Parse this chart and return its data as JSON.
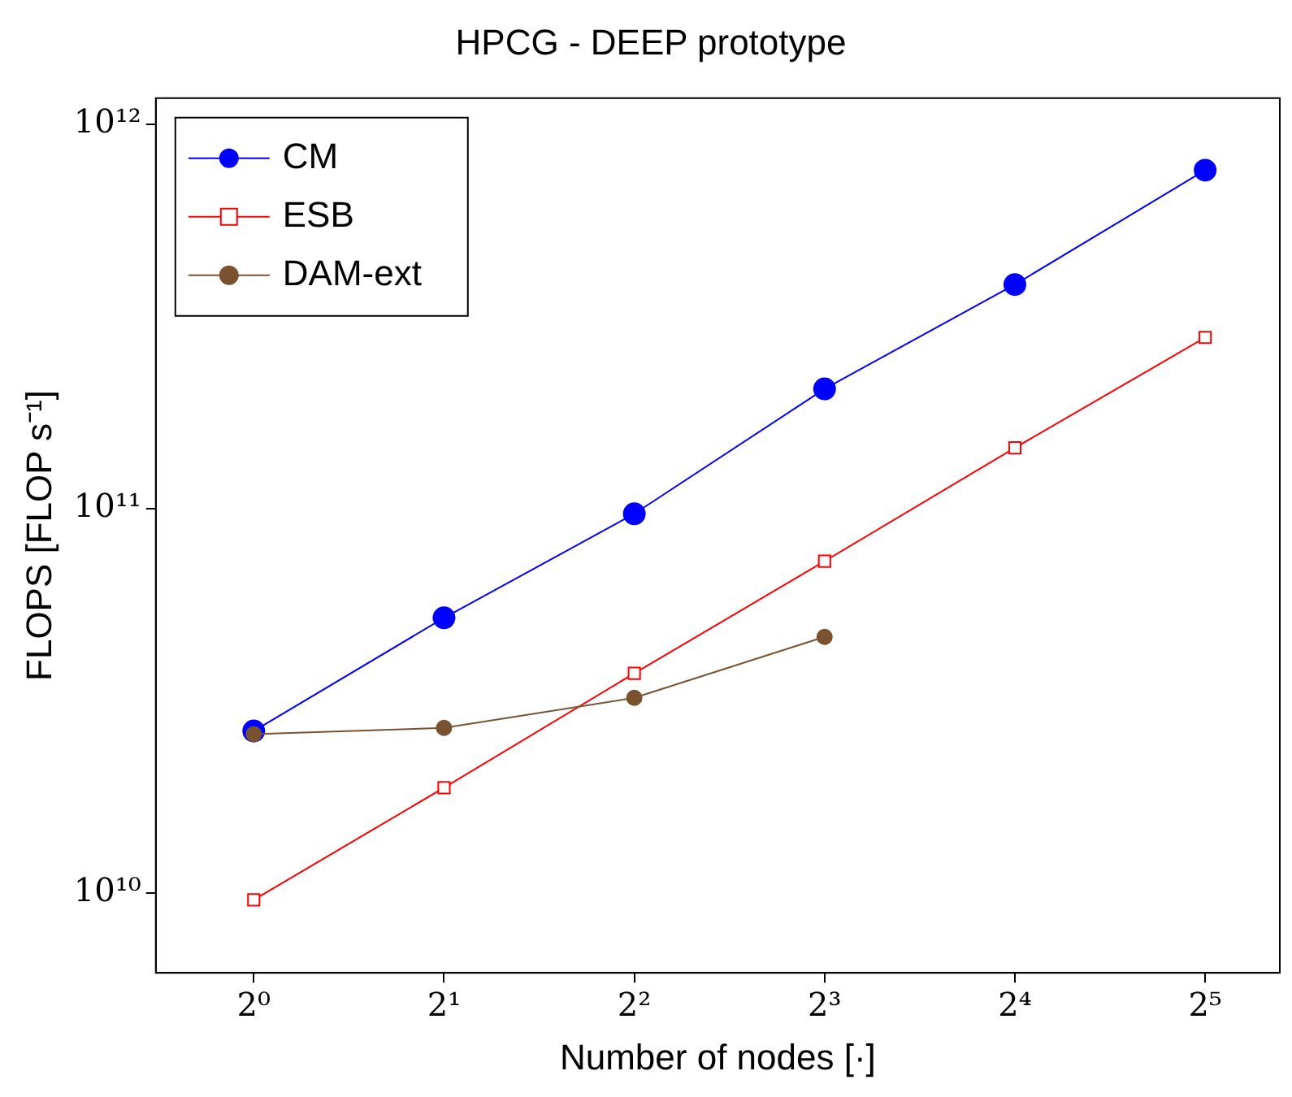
{
  "chart_data": {
    "type": "line",
    "title": "HPCG - DEEP prototype",
    "xlabel": "Number of nodes [·]",
    "ylabel": "FLOPS [FLOP s⁻¹]",
    "log": "xy",
    "x": [
      1,
      2,
      4,
      8,
      16,
      32
    ],
    "xlim": [
      0.7071,
      42
    ],
    "xticks": [
      {
        "value": 1,
        "label": "2⁰"
      },
      {
        "value": 2,
        "label": "2¹"
      },
      {
        "value": 4,
        "label": "2²"
      },
      {
        "value": 8,
        "label": "2³"
      },
      {
        "value": 16,
        "label": "2⁴"
      },
      {
        "value": 32,
        "label": "2⁵"
      }
    ],
    "ylim": [
      6200000000.0,
      1170000000000.0
    ],
    "yticks": [
      {
        "value": 10000000000.0,
        "label": "10¹⁰"
      },
      {
        "value": 100000000000.0,
        "label": "10¹¹"
      },
      {
        "value": 1000000000000.0,
        "label": "10¹²"
      }
    ],
    "grid": false,
    "legend": "top left",
    "series": [
      {
        "name": "CM",
        "color": "#0000ff",
        "marker": "circle",
        "values": [
          26400000000.0,
          52000000000.0,
          97000000000.0,
          205000000000.0,
          383000000000.0,
          760000000000.0
        ]
      },
      {
        "name": "ESB",
        "color": "#ff0000",
        "marker": "square",
        "values": [
          9600000000.0,
          18800000000.0,
          37300000000.0,
          73000000000.0,
          144000000000.0,
          279000000000.0
        ]
      },
      {
        "name": "DAM-ext",
        "color": "#7a5230",
        "marker": "circle",
        "values": [
          25900000000.0,
          26900000000.0,
          32200000000.0,
          46400000000.0,
          null,
          null
        ]
      }
    ]
  }
}
